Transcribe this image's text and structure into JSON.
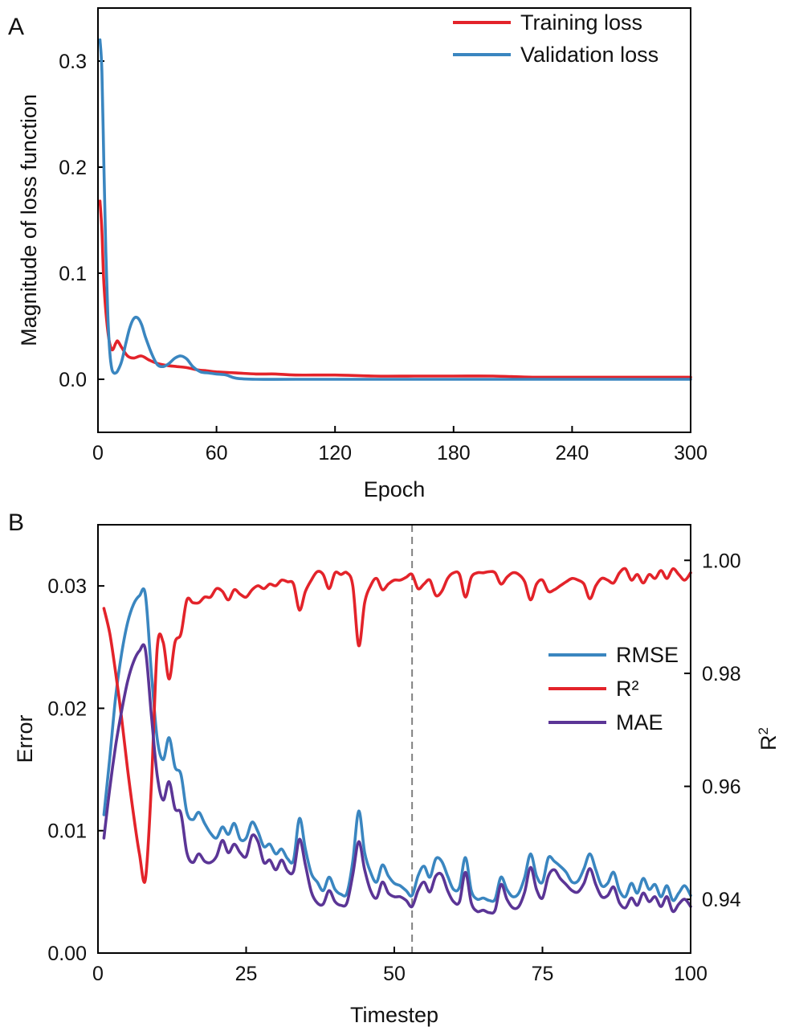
{
  "chart_data": [
    {
      "type": "line",
      "panel_label": "A",
      "xlabel": "Epoch",
      "ylabel": "Magnitude of loss function",
      "xlim": [
        0,
        300
      ],
      "ylim": [
        -0.05,
        0.35
      ],
      "xticks": [
        0,
        60,
        120,
        180,
        240,
        300
      ],
      "yticks": [
        0.0,
        0.1,
        0.2,
        0.3
      ],
      "ytick_labels": [
        "0.0",
        "0.1",
        "0.2",
        "0.3"
      ],
      "grid": false,
      "legend": "top-right",
      "series": [
        {
          "name": "Training loss",
          "color": "#e3232a",
          "x": [
            1,
            2,
            3,
            5,
            7,
            9,
            10,
            12,
            15,
            18,
            22,
            26,
            30,
            35,
            40,
            45,
            50,
            55,
            60,
            70,
            80,
            90,
            100,
            120,
            140,
            160,
            180,
            200,
            220,
            240,
            260,
            280,
            300
          ],
          "y": [
            0.168,
            0.14,
            0.09,
            0.045,
            0.028,
            0.034,
            0.036,
            0.03,
            0.022,
            0.02,
            0.022,
            0.018,
            0.015,
            0.013,
            0.012,
            0.011,
            0.009,
            0.008,
            0.007,
            0.006,
            0.005,
            0.005,
            0.004,
            0.004,
            0.003,
            0.003,
            0.003,
            0.003,
            0.002,
            0.002,
            0.002,
            0.002,
            0.002
          ]
        },
        {
          "name": "Validation loss",
          "color": "#3a86c0",
          "x": [
            1,
            2,
            3,
            4,
            5,
            6,
            7,
            8,
            9,
            10,
            12,
            14,
            16,
            18,
            20,
            22,
            24,
            27,
            30,
            33,
            36,
            39,
            42,
            45,
            48,
            52,
            56,
            60,
            65,
            70,
            80,
            100,
            150,
            200,
            250,
            300
          ],
          "y": [
            0.32,
            0.29,
            0.2,
            0.12,
            0.06,
            0.025,
            0.01,
            0.006,
            0.006,
            0.008,
            0.017,
            0.033,
            0.048,
            0.057,
            0.058,
            0.052,
            0.04,
            0.025,
            0.014,
            0.012,
            0.015,
            0.02,
            0.022,
            0.019,
            0.012,
            0.007,
            0.006,
            0.005,
            0.004,
            0.001,
            0.0,
            0.0,
            0.0,
            0.0,
            0.0,
            0.0
          ]
        }
      ]
    },
    {
      "type": "line",
      "panel_label": "B",
      "xlabel": "Timestep",
      "ylabel": "Error",
      "ylabel_right_base": "R",
      "ylabel_right_sup": "2",
      "xlim": [
        0,
        100
      ],
      "ylim": [
        0.0,
        0.035
      ],
      "ylim_right": [
        0.9305,
        1.0063
      ],
      "xticks": [
        0,
        25,
        50,
        75,
        100
      ],
      "yticks": [
        0.0,
        0.01,
        0.02,
        0.03
      ],
      "ytick_labels": [
        "0.00",
        "0.01",
        "0.02",
        "0.03"
      ],
      "yticks_right": [
        0.94,
        0.96,
        0.98,
        1.0
      ],
      "ytick_labels_right": [
        "0.94",
        "0.96",
        "0.98",
        "1.00"
      ],
      "vline_x": 53,
      "vline_color": "#808080",
      "grid": false,
      "legend": "right",
      "series": [
        {
          "name": "RMSE",
          "axis": "left",
          "color": "#3a86c0",
          "x": [
            1,
            2,
            3,
            4,
            5,
            6,
            7,
            8,
            9,
            10,
            11,
            12,
            13,
            14,
            15,
            16,
            17,
            18,
            19,
            20,
            21,
            22,
            23,
            24,
            25,
            26,
            27,
            28,
            29,
            30,
            31,
            32,
            33,
            34,
            35,
            36,
            37,
            38,
            39,
            40,
            41,
            42,
            43,
            44,
            45,
            46,
            47,
            48,
            49,
            50,
            51,
            52,
            53,
            54,
            55,
            56,
            57,
            58,
            59,
            60,
            61,
            62,
            63,
            64,
            65,
            66,
            67,
            68,
            69,
            70,
            71,
            72,
            73,
            74,
            75,
            76,
            77,
            78,
            79,
            80,
            81,
            82,
            83,
            84,
            85,
            86,
            87,
            88,
            89,
            90,
            91,
            92,
            93,
            94,
            95,
            96,
            97,
            98,
            99,
            100
          ],
          "y": [
            0.0113,
            0.016,
            0.021,
            0.0245,
            0.027,
            0.0285,
            0.0292,
            0.0293,
            0.023,
            0.0175,
            0.0158,
            0.0176,
            0.0152,
            0.0146,
            0.0115,
            0.0109,
            0.0115,
            0.0106,
            0.0098,
            0.0094,
            0.0103,
            0.0097,
            0.0106,
            0.0093,
            0.0094,
            0.0107,
            0.0099,
            0.0087,
            0.0089,
            0.0081,
            0.0085,
            0.0077,
            0.0076,
            0.011,
            0.0085,
            0.0065,
            0.0058,
            0.0051,
            0.0062,
            0.0052,
            0.0048,
            0.0049,
            0.0075,
            0.0116,
            0.0082,
            0.0066,
            0.0058,
            0.0072,
            0.0063,
            0.0057,
            0.0055,
            0.0051,
            0.0047,
            0.0063,
            0.0071,
            0.0062,
            0.0077,
            0.0075,
            0.0063,
            0.0052,
            0.0054,
            0.0078,
            0.0051,
            0.0044,
            0.0045,
            0.0043,
            0.0044,
            0.0062,
            0.0052,
            0.0046,
            0.0049,
            0.0062,
            0.0081,
            0.0063,
            0.0058,
            0.0078,
            0.0075,
            0.0071,
            0.0066,
            0.0058,
            0.0059,
            0.0069,
            0.0081,
            0.0068,
            0.0055,
            0.0057,
            0.0066,
            0.0051,
            0.0046,
            0.0057,
            0.0049,
            0.0061,
            0.0052,
            0.0056,
            0.0046,
            0.0055,
            0.0043,
            0.0049,
            0.0055,
            0.0047
          ]
        },
        {
          "name": "R²",
          "axis": "right",
          "color": "#e3232a",
          "x": [
            1,
            2,
            3,
            4,
            5,
            6,
            7,
            8,
            9,
            10,
            11,
            12,
            13,
            14,
            15,
            16,
            17,
            18,
            19,
            20,
            21,
            22,
            23,
            24,
            25,
            26,
            27,
            28,
            29,
            30,
            31,
            32,
            33,
            34,
            35,
            36,
            37,
            38,
            39,
            40,
            41,
            42,
            43,
            44,
            45,
            46,
            47,
            48,
            49,
            50,
            51,
            52,
            53,
            54,
            55,
            56,
            57,
            58,
            59,
            60,
            61,
            62,
            63,
            64,
            65,
            66,
            67,
            68,
            69,
            70,
            71,
            72,
            73,
            74,
            75,
            76,
            77,
            78,
            79,
            80,
            81,
            82,
            83,
            84,
            85,
            86,
            87,
            88,
            89,
            90,
            91,
            92,
            93,
            94,
            95,
            96,
            97,
            98,
            99,
            100
          ],
          "y": [
            0.9915,
            0.987,
            0.98,
            0.972,
            0.963,
            0.955,
            0.948,
            0.9435,
            0.96,
            0.9845,
            0.9855,
            0.979,
            0.9855,
            0.987,
            0.993,
            0.9925,
            0.9925,
            0.9935,
            0.9935,
            0.995,
            0.9945,
            0.993,
            0.9948,
            0.994,
            0.9935,
            0.9948,
            0.9955,
            0.995,
            0.9958,
            0.9955,
            0.9965,
            0.9962,
            0.9958,
            0.9912,
            0.9945,
            0.9965,
            0.998,
            0.9975,
            0.995,
            0.9978,
            0.9975,
            0.9978,
            0.9955,
            0.9849,
            0.9925,
            0.9955,
            0.9968,
            0.9948,
            0.9958,
            0.9965,
            0.9965,
            0.997,
            0.9975,
            0.995,
            0.9958,
            0.9965,
            0.9938,
            0.9945,
            0.9968,
            0.9978,
            0.9975,
            0.9935,
            0.997,
            0.9978,
            0.9978,
            0.998,
            0.9978,
            0.9958,
            0.997,
            0.9978,
            0.9975,
            0.9962,
            0.993,
            0.9958,
            0.9965,
            0.9945,
            0.9948,
            0.9955,
            0.9962,
            0.9968,
            0.9965,
            0.9958,
            0.9932,
            0.9955,
            0.9968,
            0.9965,
            0.996,
            0.9978,
            0.9985,
            0.9965,
            0.9975,
            0.996,
            0.9975,
            0.9968,
            0.9982,
            0.9968,
            0.9985,
            0.9975,
            0.9965,
            0.9978
          ]
        },
        {
          "name": "MAE",
          "axis": "left",
          "color": "#5b3596",
          "x": [
            1,
            2,
            3,
            4,
            5,
            6,
            7,
            8,
            9,
            10,
            11,
            12,
            13,
            14,
            15,
            16,
            17,
            18,
            19,
            20,
            21,
            22,
            23,
            24,
            25,
            26,
            27,
            28,
            29,
            30,
            31,
            32,
            33,
            34,
            35,
            36,
            37,
            38,
            39,
            40,
            41,
            42,
            43,
            44,
            45,
            46,
            47,
            48,
            49,
            50,
            51,
            52,
            53,
            54,
            55,
            56,
            57,
            58,
            59,
            60,
            61,
            62,
            63,
            64,
            65,
            66,
            67,
            68,
            69,
            70,
            71,
            72,
            73,
            74,
            75,
            76,
            77,
            78,
            79,
            80,
            81,
            82,
            83,
            84,
            85,
            86,
            87,
            88,
            89,
            90,
            91,
            92,
            93,
            94,
            95,
            96,
            97,
            98,
            99,
            100
          ],
          "y": [
            0.0094,
            0.0135,
            0.017,
            0.0198,
            0.0222,
            0.0238,
            0.0247,
            0.0248,
            0.0195,
            0.0145,
            0.0125,
            0.014,
            0.0118,
            0.0114,
            0.0082,
            0.0074,
            0.0081,
            0.0075,
            0.0074,
            0.0079,
            0.0092,
            0.0082,
            0.0089,
            0.0082,
            0.0079,
            0.0096,
            0.0091,
            0.0074,
            0.0076,
            0.0068,
            0.0076,
            0.0067,
            0.0067,
            0.0093,
            0.0072,
            0.005,
            0.0041,
            0.004,
            0.0051,
            0.0042,
            0.0039,
            0.0041,
            0.0064,
            0.0091,
            0.0068,
            0.0051,
            0.0045,
            0.0058,
            0.0049,
            0.0046,
            0.0046,
            0.0043,
            0.0038,
            0.0051,
            0.0058,
            0.005,
            0.0063,
            0.0064,
            0.0051,
            0.0042,
            0.0042,
            0.0066,
            0.0041,
            0.0034,
            0.0035,
            0.0033,
            0.0035,
            0.0056,
            0.0044,
            0.0037,
            0.0038,
            0.005,
            0.007,
            0.0052,
            0.0045,
            0.0063,
            0.0068,
            0.0061,
            0.0056,
            0.0051,
            0.005,
            0.0057,
            0.0069,
            0.0056,
            0.0046,
            0.0047,
            0.0054,
            0.0041,
            0.0037,
            0.0045,
            0.0039,
            0.0049,
            0.0042,
            0.0046,
            0.0038,
            0.0046,
            0.0034,
            0.004,
            0.0044,
            0.0038
          ]
        }
      ]
    }
  ]
}
